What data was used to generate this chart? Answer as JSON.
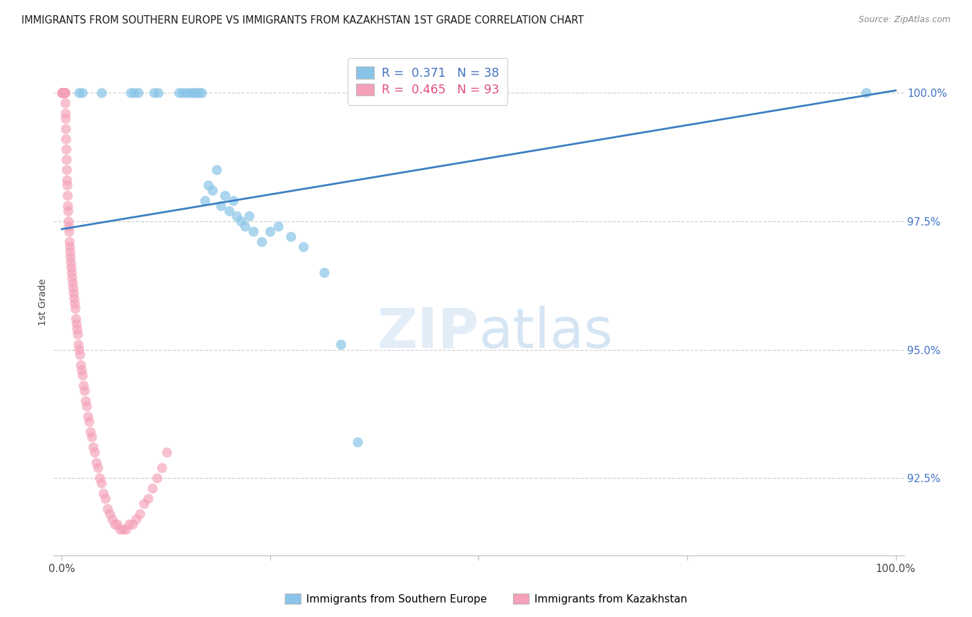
{
  "title": "IMMIGRANTS FROM SOUTHERN EUROPE VS IMMIGRANTS FROM KAZAKHSTAN 1ST GRADE CORRELATION CHART",
  "source": "Source: ZipAtlas.com",
  "ylabel": "1st Grade",
  "blue_color": "#89c4e8",
  "pink_color": "#f4a0b8",
  "line_color": "#3a7fc1",
  "blue_scatter_x": [
    2.1,
    2.5,
    4.8,
    8.3,
    8.7,
    9.2,
    11.1,
    11.6,
    14.1,
    14.5,
    15.0,
    15.4,
    15.8,
    16.1,
    16.5,
    16.8,
    17.2,
    17.6,
    18.1,
    18.6,
    19.1,
    19.6,
    20.1,
    20.6,
    21.0,
    21.5,
    22.0,
    22.5,
    23.0,
    24.0,
    25.0,
    26.0,
    27.5,
    29.0,
    31.5,
    33.5,
    35.5,
    96.5
  ],
  "blue_scatter_y": [
    100.0,
    100.0,
    100.0,
    100.0,
    100.0,
    100.0,
    100.0,
    100.0,
    100.0,
    100.0,
    100.0,
    100.0,
    100.0,
    100.0,
    100.0,
    100.0,
    97.9,
    98.2,
    98.1,
    98.5,
    97.8,
    98.0,
    97.7,
    97.9,
    97.6,
    97.5,
    97.4,
    97.6,
    97.3,
    97.1,
    97.3,
    97.4,
    97.2,
    97.0,
    96.5,
    95.1,
    93.2,
    100.0
  ],
  "pink_scatter_x": [
    0.05,
    0.08,
    0.1,
    0.12,
    0.14,
    0.16,
    0.18,
    0.2,
    0.22,
    0.24,
    0.26,
    0.28,
    0.3,
    0.32,
    0.34,
    0.36,
    0.38,
    0.4,
    0.42,
    0.44,
    0.46,
    0.48,
    0.5,
    0.52,
    0.55,
    0.58,
    0.61,
    0.64,
    0.67,
    0.7,
    0.74,
    0.78,
    0.82,
    0.86,
    0.9,
    0.94,
    0.98,
    1.02,
    1.06,
    1.1,
    1.15,
    1.2,
    1.26,
    1.32,
    1.38,
    1.44,
    1.5,
    1.57,
    1.64,
    1.71,
    1.78,
    1.85,
    1.93,
    2.01,
    2.1,
    2.2,
    2.3,
    2.4,
    2.51,
    2.63,
    2.75,
    2.88,
    3.01,
    3.15,
    3.3,
    3.46,
    3.62,
    3.79,
    3.97,
    4.16,
    4.36,
    4.57,
    4.79,
    5.02,
    5.26,
    5.52,
    5.79,
    6.07,
    6.37,
    6.68,
    7.01,
    7.36,
    7.73,
    8.11,
    8.52,
    8.95,
    9.4,
    9.88,
    10.38,
    10.9,
    11.45,
    12.02,
    12.62
  ],
  "pink_scatter_y": [
    100.0,
    100.0,
    100.0,
    100.0,
    100.0,
    100.0,
    100.0,
    100.0,
    100.0,
    100.0,
    100.0,
    100.0,
    100.0,
    100.0,
    100.0,
    100.0,
    100.0,
    100.0,
    100.0,
    99.8,
    99.6,
    99.5,
    99.3,
    99.1,
    98.9,
    98.7,
    98.5,
    98.3,
    98.2,
    98.0,
    97.8,
    97.7,
    97.5,
    97.4,
    97.3,
    97.1,
    97.0,
    96.9,
    96.8,
    96.7,
    96.6,
    96.5,
    96.4,
    96.3,
    96.2,
    96.1,
    96.0,
    95.9,
    95.8,
    95.6,
    95.5,
    95.4,
    95.3,
    95.1,
    95.0,
    94.9,
    94.7,
    94.6,
    94.5,
    94.3,
    94.2,
    94.0,
    93.9,
    93.7,
    93.6,
    93.4,
    93.3,
    93.1,
    93.0,
    92.8,
    92.7,
    92.5,
    92.4,
    92.2,
    92.1,
    91.9,
    91.8,
    91.7,
    91.6,
    91.6,
    91.5,
    91.5,
    91.5,
    91.6,
    91.6,
    91.7,
    91.8,
    92.0,
    92.1,
    92.3,
    92.5,
    92.7,
    93.0
  ],
  "regression_x0": 0.0,
  "regression_x1": 100.0,
  "regression_y0": 97.35,
  "regression_y1": 100.05,
  "y_min": 91.0,
  "y_max": 100.85,
  "x_min": -1.0,
  "x_max": 101.0,
  "yticks": [
    92.5,
    95.0,
    97.5,
    100.0
  ],
  "ytick_labels": [
    "92.5%",
    "95.0%",
    "97.5%",
    "100.0%"
  ],
  "xticks": [
    0,
    25,
    50,
    75,
    100
  ],
  "xtick_labels": [
    "0.0%",
    "",
    "",
    "",
    "100.0%"
  ],
  "legend1_label": "R =  0.371   N = 38",
  "legend2_label": "R =  0.465   N = 93",
  "bottom_legend1": "Immigrants from Southern Europe",
  "bottom_legend2": "Immigrants from Kazakhstan",
  "watermark_zip": "ZIP",
  "watermark_atlas": "atlas",
  "background_color": "#ffffff",
  "grid_color": "#d0d0d0",
  "ytick_color": "#4472c4",
  "title_color": "#1a1a1a",
  "source_color": "#888888"
}
